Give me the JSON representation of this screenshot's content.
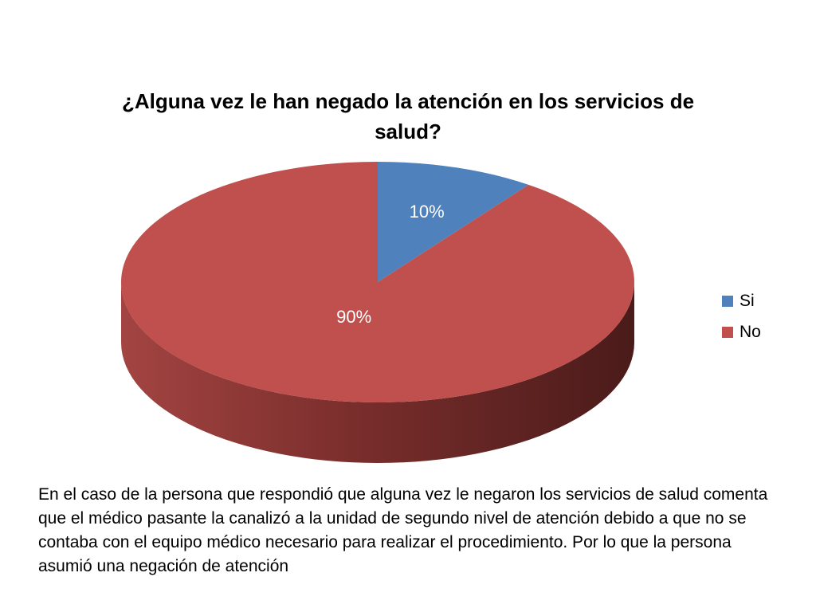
{
  "chart_data": {
    "type": "pie",
    "title": "¿Alguna vez le han negado la atención en los servicios de salud?",
    "categories": [
      "Si",
      "No"
    ],
    "values": [
      10,
      90
    ],
    "data_labels": [
      "10%",
      "90%"
    ],
    "colors": [
      "#4F81BD",
      "#C0504D"
    ],
    "side_colors": [
      "#2E4D73",
      "#6E2624"
    ],
    "legend_position": "right",
    "style": "3d"
  },
  "legend": {
    "items": [
      {
        "label": "Si",
        "color": "#4F81BD"
      },
      {
        "label": "No",
        "color": "#C0504D"
      }
    ]
  },
  "caption": "En el caso de la persona que respondió que alguna vez le negaron los servicios de salud comenta que el médico pasante la canalizó a la unidad de segundo nivel de atención debido a que no se contaba con el equipo médico necesario para realizar el procedimiento. Por lo que la persona asumió una negación de atención"
}
